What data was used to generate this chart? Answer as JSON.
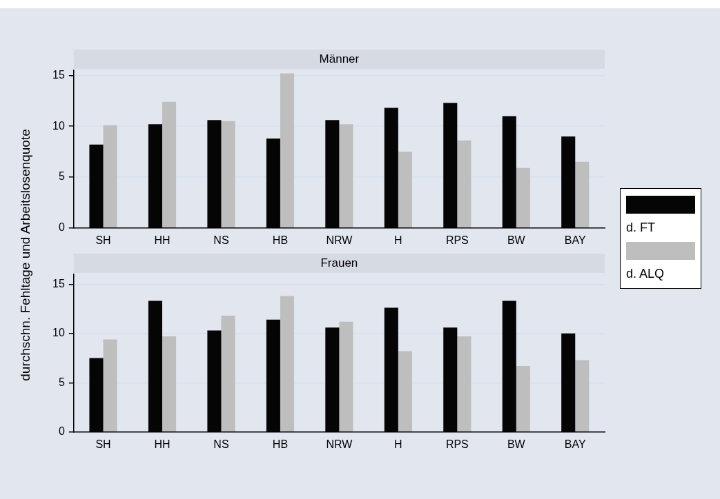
{
  "chart_data": [
    {
      "type": "bar",
      "title": "Männer",
      "ylabel": "durchschn. Fehltage und Arbeitslosenquote",
      "categories": [
        "SH",
        "HH",
        "NS",
        "HB",
        "NRW",
        "H",
        "RPS",
        "BW",
        "BAY"
      ],
      "series": [
        {
          "name": "d. FT",
          "color": "#050505",
          "values": [
            8.2,
            10.2,
            10.6,
            8.8,
            10.6,
            11.8,
            12.3,
            11.0,
            9.0
          ]
        },
        {
          "name": "d. ALQ",
          "color": "#bebebe",
          "values": [
            10.1,
            12.4,
            10.5,
            15.2,
            10.2,
            7.5,
            8.6,
            5.9,
            6.5
          ]
        }
      ],
      "ylim": [
        0,
        15.5
      ],
      "yticks": [
        0,
        5,
        10,
        15
      ],
      "grid": "y",
      "legend": "right"
    },
    {
      "type": "bar",
      "title": "Frauen",
      "categories": [
        "SH",
        "HH",
        "NS",
        "HB",
        "NRW",
        "H",
        "RPS",
        "BW",
        "BAY"
      ],
      "series": [
        {
          "color": "#050505",
          "values": [
            7.5,
            13.3,
            10.3,
            11.4,
            10.6,
            12.6,
            10.6,
            13.3,
            10.0
          ]
        },
        {
          "color": "#bebebe",
          "values": [
            9.4,
            9.7,
            11.8,
            13.8,
            11.2,
            8.2,
            9.7,
            6.7,
            7.3
          ]
        }
      ],
      "ylim": [
        0,
        16
      ],
      "yticks": [
        0,
        5,
        10,
        15
      ],
      "grid": "y"
    }
  ]
}
